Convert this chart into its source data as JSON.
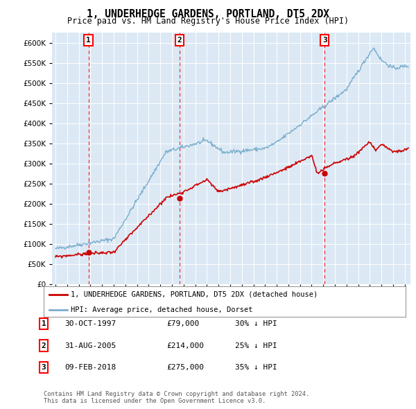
{
  "title": "1, UNDERHEDGE GARDENS, PORTLAND, DT5 2DX",
  "subtitle": "Price paid vs. HM Land Registry's House Price Index (HPI)",
  "plot_bg_color": "#dce9f5",
  "hpi_color": "#7aadcc",
  "price_color": "#cc0000",
  "sale_marker_color": "#cc0000",
  "sale_decimal": [
    1997.83,
    2005.67,
    2018.12
  ],
  "sale_prices": [
    79000,
    214000,
    275000
  ],
  "sale_labels": [
    "1",
    "2",
    "3"
  ],
  "legend_entries": [
    "1, UNDERHEDGE GARDENS, PORTLAND, DT5 2DX (detached house)",
    "HPI: Average price, detached house, Dorset"
  ],
  "table_rows": [
    [
      "1",
      "30-OCT-1997",
      "£79,000",
      "30% ↓ HPI"
    ],
    [
      "2",
      "31-AUG-2005",
      "£214,000",
      "25% ↓ HPI"
    ],
    [
      "3",
      "09-FEB-2018",
      "£275,000",
      "35% ↓ HPI"
    ]
  ],
  "footer": "Contains HM Land Registry data © Crown copyright and database right 2024.\nThis data is licensed under the Open Government Licence v3.0.",
  "ylim": [
    0,
    625000
  ],
  "yticks": [
    0,
    50000,
    100000,
    150000,
    200000,
    250000,
    300000,
    350000,
    400000,
    450000,
    500000,
    550000,
    600000
  ],
  "xlim_start": 1994.7,
  "xlim_end": 2025.5,
  "hpi_seed": 42,
  "price_seed": 99
}
